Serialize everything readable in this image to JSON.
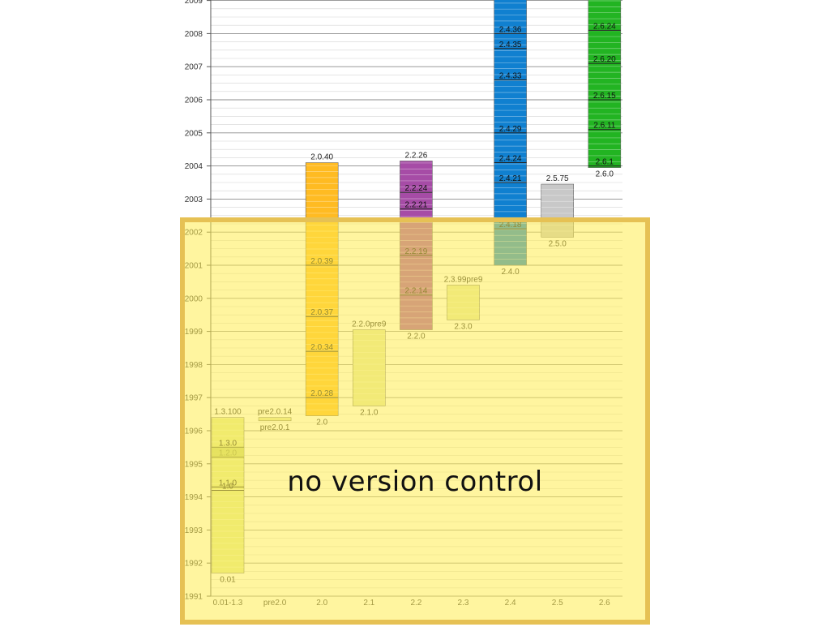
{
  "overlay": {
    "label": "no version control"
  },
  "colors": {
    "v2.0": "#ffbb22",
    "v2.2": "#a64ca6",
    "v2.4": "#1080d0",
    "v2.5": "#c8c8c8",
    "v2.6": "#22b422",
    "pale": "#e2e6a6",
    "early": "#dfe890",
    "early_band": "#bccc66",
    "overlay_fill": "#fff066",
    "overlay_border": "#e6c154"
  },
  "chart_data": {
    "type": "bar",
    "subtype": "floating-range",
    "categories": [
      "0.01-1.3",
      "pre2.0",
      "2.0",
      "2.1",
      "2.2",
      "2.3",
      "2.4",
      "2.5",
      "2.6"
    ],
    "y_ticks": [
      "1991",
      "1992",
      "1993",
      "1994",
      "1995",
      "1996",
      "1997",
      "1998",
      "1999",
      "2000",
      "2001",
      "2002",
      "2003",
      "2004",
      "2005",
      "2006",
      "2007",
      "2008",
      "2009"
    ],
    "ylim": [
      1991,
      2009
    ],
    "grid": true,
    "bars": [
      {
        "category": "0.01-1.3",
        "start": 1991.7,
        "end": 1996.4,
        "color": "early",
        "bottom_label": "0.01",
        "top_label": "1.3.100",
        "marks": [
          {
            "label": "1.0",
            "y": 1994.2
          },
          {
            "label": "1.1.0",
            "y": 1994.3
          },
          {
            "label": "1.2.0",
            "y": 1995.2
          },
          {
            "label": "1.3.0",
            "y": 1995.5
          }
        ]
      },
      {
        "category": "pre2.0",
        "start": 1996.3,
        "end": 1996.4,
        "color": "pale",
        "bottom_label": "pre2.0.1",
        "top_label": "pre2.0.14",
        "marks": []
      },
      {
        "category": "2.0",
        "start": 1996.45,
        "end": 2004.1,
        "color": "v2.0",
        "bottom_label": "2.0",
        "top_label": "2.0.40",
        "marks": [
          {
            "label": "2.0.28",
            "y": 1997.0
          },
          {
            "label": "2.0.34",
            "y": 1998.4
          },
          {
            "label": "2.0.37",
            "y": 1999.45
          },
          {
            "label": "2.0.39",
            "y": 2001.0
          }
        ]
      },
      {
        "category": "2.1",
        "start": 1996.75,
        "end": 1999.05,
        "color": "pale",
        "bottom_label": "2.1.0",
        "top_label": "2.2.0pre9",
        "marks": []
      },
      {
        "category": "2.2",
        "start": 1999.05,
        "end": 2004.15,
        "color": "v2.2",
        "bottom_label": "2.2.0",
        "top_label": "2.2.26",
        "marks": [
          {
            "label": "2.2.14",
            "y": 2000.1
          },
          {
            "label": "2.2.19",
            "y": 2001.3
          },
          {
            "label": "2.2.21",
            "y": 2002.7
          },
          {
            "label": "2.2.24",
            "y": 2003.2
          }
        ]
      },
      {
        "category": "2.3",
        "start": 1999.35,
        "end": 2000.4,
        "color": "pale",
        "bottom_label": "2.3.0",
        "top_label": "2.3.99pre9",
        "marks": []
      },
      {
        "category": "2.4",
        "start": 2001.0,
        "end": 2009.2,
        "color": "v2.4",
        "bottom_label": "2.4.0",
        "top_label": "",
        "marks": [
          {
            "label": "2.4.18",
            "y": 2002.1
          },
          {
            "label": "2.4.21",
            "y": 2003.5
          },
          {
            "label": "2.4.24",
            "y": 2004.1
          },
          {
            "label": "2.4.29",
            "y": 2005.0
          },
          {
            "label": "2.4.33",
            "y": 2006.6
          },
          {
            "label": "2.4.35",
            "y": 2007.55
          },
          {
            "label": "2.4.36",
            "y": 2008.0
          }
        ]
      },
      {
        "category": "2.5",
        "start": 2001.85,
        "end": 2003.45,
        "color": "v2.5",
        "bottom_label": "2.5.0",
        "top_label": "2.5.75",
        "marks": []
      },
      {
        "category": "2.6",
        "start": 2003.95,
        "end": 2009.2,
        "color": "v2.6",
        "bottom_label": "2.6.0",
        "top_label": "",
        "marks": [
          {
            "label": "2.6.1",
            "y": 2004.0
          },
          {
            "label": "2.6.11",
            "y": 2005.1
          },
          {
            "label": "2.6.15",
            "y": 2006.0
          },
          {
            "label": "2.6.20",
            "y": 2007.1
          },
          {
            "label": "2.6.24",
            "y": 2008.1
          }
        ]
      }
    ]
  }
}
